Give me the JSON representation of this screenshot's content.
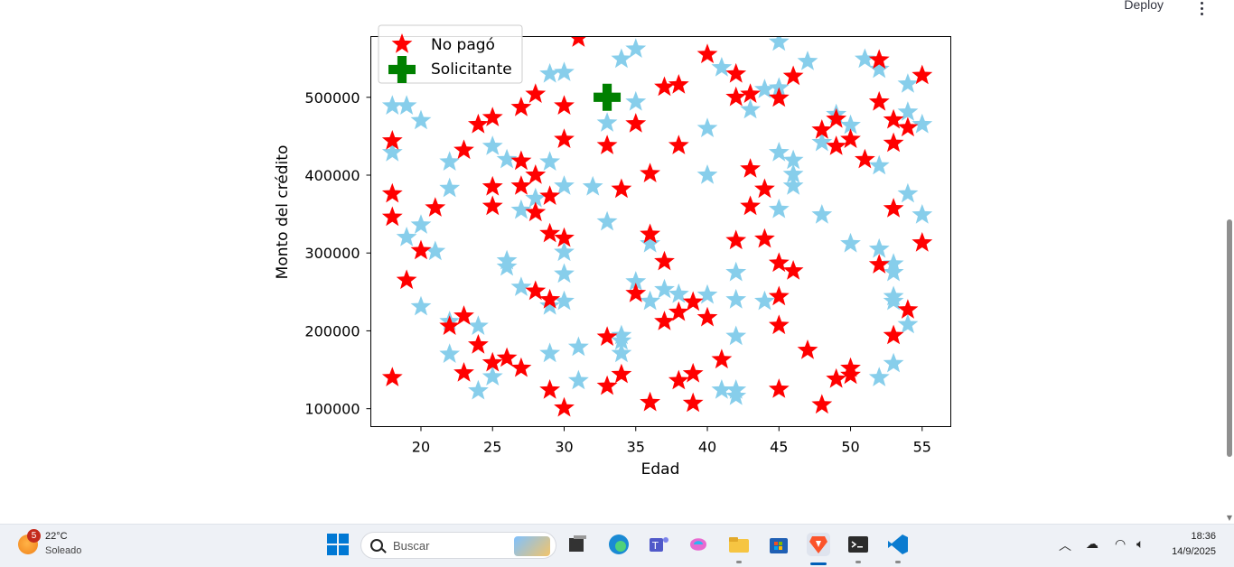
{
  "header": {
    "deploy_label": "Deploy"
  },
  "chart_data": {
    "type": "scatter",
    "xlabel": "Edad",
    "ylabel": "Monto del crédito",
    "xlim": [
      16.5,
      57
    ],
    "ylim": [
      77000,
      578000
    ],
    "x_ticks": [
      "20",
      "25",
      "30",
      "35",
      "40",
      "45",
      "50",
      "55"
    ],
    "x_tick_values": [
      20,
      25,
      30,
      35,
      40,
      45,
      50,
      55
    ],
    "y_ticks": [
      "100000",
      "200000",
      "300000",
      "400000",
      "500000"
    ],
    "y_tick_values": [
      100000,
      200000,
      300000,
      400000,
      500000
    ],
    "legend": {
      "position": "top-left",
      "entries": [
        {
          "label": "No pagó",
          "color": "#ff0000",
          "marker": "star"
        },
        {
          "label": "Solicitante",
          "color": "#008000",
          "marker": "plus"
        }
      ]
    },
    "series": [
      {
        "name": "",
        "color": "#87ceeb",
        "marker": "star",
        "points": [
          [
            18,
            489000
          ],
          [
            19,
            489000
          ],
          [
            18,
            429000
          ],
          [
            20,
            470000
          ],
          [
            19,
            320000
          ],
          [
            20,
            336000
          ],
          [
            21,
            302000
          ],
          [
            20,
            231000
          ],
          [
            22,
            417000
          ],
          [
            22,
            383000
          ],
          [
            22,
            212000
          ],
          [
            22,
            170000
          ],
          [
            24,
            206000
          ],
          [
            24,
            123000
          ],
          [
            25,
            437000
          ],
          [
            25,
            141000
          ],
          [
            26,
            420000
          ],
          [
            26,
            290000
          ],
          [
            26,
            282000
          ],
          [
            27,
            355000
          ],
          [
            27,
            256000
          ],
          [
            28,
            370000
          ],
          [
            29,
            530000
          ],
          [
            29,
            417000
          ],
          [
            29,
            232000
          ],
          [
            29,
            171000
          ],
          [
            30,
            532000
          ],
          [
            30,
            386000
          ],
          [
            30,
            301000
          ],
          [
            30,
            273000
          ],
          [
            30,
            238000
          ],
          [
            31,
            179000
          ],
          [
            31,
            136000
          ],
          [
            32,
            385000
          ],
          [
            33,
            467000
          ],
          [
            33,
            340000
          ],
          [
            34,
            549000
          ],
          [
            34,
            194000
          ],
          [
            34,
            187000
          ],
          [
            34,
            171000
          ],
          [
            35,
            562000
          ],
          [
            35,
            494000
          ],
          [
            35,
            263000
          ],
          [
            36,
            312000
          ],
          [
            36,
            238000
          ],
          [
            37,
            253000
          ],
          [
            38,
            247000
          ],
          [
            40,
            460000
          ],
          [
            40,
            400000
          ],
          [
            40,
            246000
          ],
          [
            41,
            538000
          ],
          [
            41,
            124000
          ],
          [
            42,
            275000
          ],
          [
            42,
            240000
          ],
          [
            42,
            193000
          ],
          [
            42,
            124000
          ],
          [
            42,
            116000
          ],
          [
            43,
            484000
          ],
          [
            44,
            510000
          ],
          [
            44,
            238000
          ],
          [
            45,
            571000
          ],
          [
            45,
            512000
          ],
          [
            45,
            429000
          ],
          [
            45,
            356000
          ],
          [
            46,
            419000
          ],
          [
            46,
            401000
          ],
          [
            46,
            386000
          ],
          [
            47,
            546000
          ],
          [
            48,
            442000
          ],
          [
            48,
            349000
          ],
          [
            49,
            478000
          ],
          [
            50,
            464000
          ],
          [
            50,
            312000
          ],
          [
            51,
            549000
          ],
          [
            52,
            536000
          ],
          [
            52,
            412000
          ],
          [
            52,
            305000
          ],
          [
            52,
            140000
          ],
          [
            53,
            286000
          ],
          [
            53,
            275000
          ],
          [
            53,
            244000
          ],
          [
            53,
            238000
          ],
          [
            53,
            158000
          ],
          [
            54,
            517000
          ],
          [
            54,
            481000
          ],
          [
            54,
            376000
          ],
          [
            54,
            208000
          ],
          [
            55,
            465000
          ],
          [
            55,
            349000
          ]
        ]
      },
      {
        "name": "No pagó",
        "color": "#ff0000",
        "marker": "star",
        "points": [
          [
            18,
            444000
          ],
          [
            18,
            376000
          ],
          [
            18,
            346000
          ],
          [
            18,
            140000
          ],
          [
            19,
            265000
          ],
          [
            20,
            303000
          ],
          [
            21,
            358000
          ],
          [
            22,
            206000
          ],
          [
            23,
            432000
          ],
          [
            23,
            219000
          ],
          [
            23,
            146000
          ],
          [
            24,
            465000
          ],
          [
            24,
            182000
          ],
          [
            25,
            474000
          ],
          [
            25,
            385000
          ],
          [
            25,
            360000
          ],
          [
            25,
            159000
          ],
          [
            26,
            165000
          ],
          [
            27,
            487000
          ],
          [
            27,
            418000
          ],
          [
            27,
            386000
          ],
          [
            27,
            152000
          ],
          [
            28,
            504000
          ],
          [
            28,
            400000
          ],
          [
            28,
            352000
          ],
          [
            28,
            251000
          ],
          [
            29,
            373000
          ],
          [
            29,
            325000
          ],
          [
            29,
            240000
          ],
          [
            29,
            124000
          ],
          [
            30,
            489000
          ],
          [
            30,
            446000
          ],
          [
            30,
            319000
          ],
          [
            30,
            101000
          ],
          [
            31,
            576000
          ],
          [
            33,
            438000
          ],
          [
            33,
            192000
          ],
          [
            33,
            129000
          ],
          [
            34,
            382000
          ],
          [
            34,
            144000
          ],
          [
            35,
            466000
          ],
          [
            35,
            248000
          ],
          [
            36,
            402000
          ],
          [
            36,
            324000
          ],
          [
            36,
            108000
          ],
          [
            37,
            513000
          ],
          [
            37,
            289000
          ],
          [
            37,
            212000
          ],
          [
            38,
            516000
          ],
          [
            38,
            438000
          ],
          [
            38,
            224000
          ],
          [
            38,
            136000
          ],
          [
            39,
            237000
          ],
          [
            39,
            145000
          ],
          [
            39,
            107000
          ],
          [
            40,
            555000
          ],
          [
            40,
            217000
          ],
          [
            41,
            163000
          ],
          [
            42,
            530000
          ],
          [
            42,
            500000
          ],
          [
            42,
            316000
          ],
          [
            43,
            504000
          ],
          [
            43,
            408000
          ],
          [
            43,
            360000
          ],
          [
            44,
            382000
          ],
          [
            44,
            318000
          ],
          [
            45,
            499000
          ],
          [
            45,
            287000
          ],
          [
            45,
            244000
          ],
          [
            45,
            207000
          ],
          [
            45,
            125000
          ],
          [
            46,
            527000
          ],
          [
            46,
            277000
          ],
          [
            47,
            175000
          ],
          [
            48,
            458000
          ],
          [
            48,
            105000
          ],
          [
            49,
            472000
          ],
          [
            49,
            437000
          ],
          [
            49,
            138000
          ],
          [
            50,
            446000
          ],
          [
            50,
            152000
          ],
          [
            50,
            143000
          ],
          [
            51,
            420000
          ],
          [
            52,
            548000
          ],
          [
            52,
            494000
          ],
          [
            52,
            285000
          ],
          [
            53,
            471000
          ],
          [
            53,
            441000
          ],
          [
            53,
            357000
          ],
          [
            53,
            194000
          ],
          [
            54,
            461000
          ],
          [
            54,
            227000
          ],
          [
            55,
            528000
          ],
          [
            55,
            313000
          ]
        ]
      },
      {
        "name": "Solicitante",
        "color": "#008000",
        "marker": "plus",
        "points": [
          [
            33,
            500000
          ]
        ]
      }
    ]
  },
  "taskbar": {
    "weather": {
      "badge": "5",
      "temp": "22°C",
      "condition": "Soleado"
    },
    "search_placeholder": "Buscar",
    "clock": {
      "time": "18:36",
      "date": "14/9/2025"
    }
  }
}
